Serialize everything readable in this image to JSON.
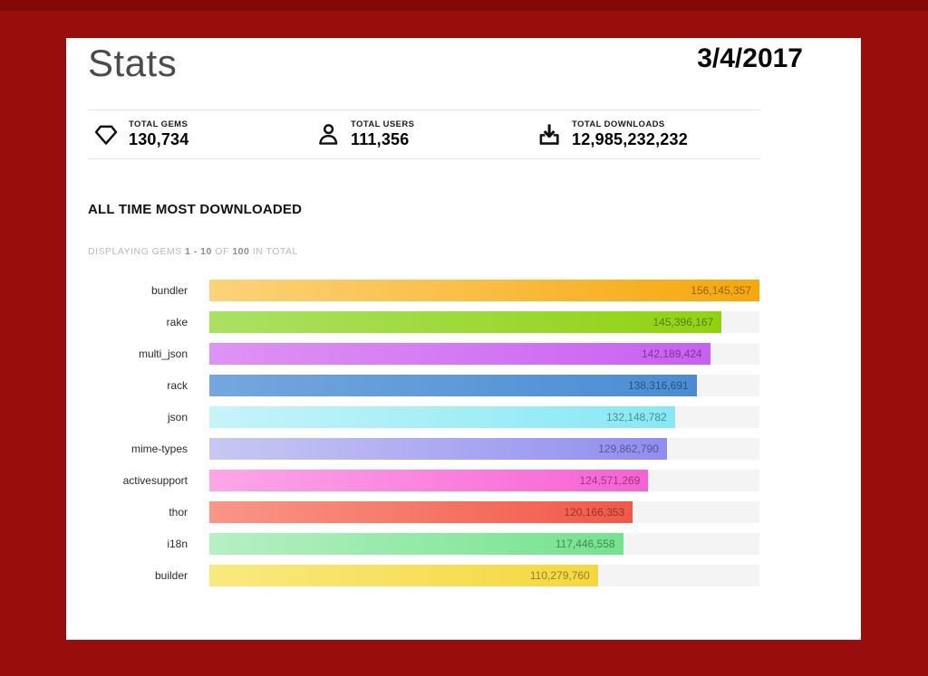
{
  "slide": {
    "date": "3/4/2017",
    "background_color": "#990d0d",
    "top_strip_color": "#830808"
  },
  "page": {
    "title": "Stats",
    "stats": [
      {
        "icon": "gem-icon",
        "label": "TOTAL GEMS",
        "value": "130,734"
      },
      {
        "icon": "user-icon",
        "label": "TOTAL USERS",
        "value": "111,356"
      },
      {
        "icon": "download-icon",
        "label": "TOTAL DOWNLOADS",
        "value": "12,985,232,232"
      }
    ],
    "displaying": {
      "prefix": "DISPLAYING GEMS",
      "range": "1 - 10",
      "of": "OF",
      "total": "100",
      "suffix": "IN TOTAL"
    }
  },
  "chart_data": {
    "type": "bar",
    "orientation": "horizontal",
    "title": "ALL TIME MOST DOWNLOADED",
    "categories": [
      "bundler",
      "rake",
      "multi_json",
      "rack",
      "json",
      "mime-types",
      "activesupport",
      "thor",
      "i18n",
      "builder"
    ],
    "values": [
      156145357,
      145396167,
      142189424,
      138316691,
      132148782,
      129862790,
      124571269,
      120166353,
      117446558,
      110279760
    ],
    "value_labels": [
      "156,145,357",
      "145,396,167",
      "142,189,424",
      "138,316,691",
      "132,148,782",
      "129,862,790",
      "124,571,269",
      "120,166,353",
      "117,446,558",
      "110,279,760"
    ],
    "xlim": [
      0,
      156145357
    ],
    "grid": false,
    "legend": "none",
    "value_label_position": "inside-right",
    "track_color": "#f4f4f4",
    "bar_gradients": [
      [
        "#FCD379",
        "#F6A70A"
      ],
      [
        "#ABE163",
        "#8FD30F"
      ],
      [
        "#DE93F5",
        "#C95FF2"
      ],
      [
        "#73A7DE",
        "#4A8CD4"
      ],
      [
        "#C6F4F9",
        "#84E9F4"
      ],
      [
        "#C9C7F3",
        "#918DF0"
      ],
      [
        "#FCA7E8",
        "#F861D3"
      ],
      [
        "#F99687",
        "#F25848"
      ],
      [
        "#B6F0C3",
        "#72E38D"
      ],
      [
        "#FAE97E",
        "#F4D83D"
      ]
    ]
  }
}
